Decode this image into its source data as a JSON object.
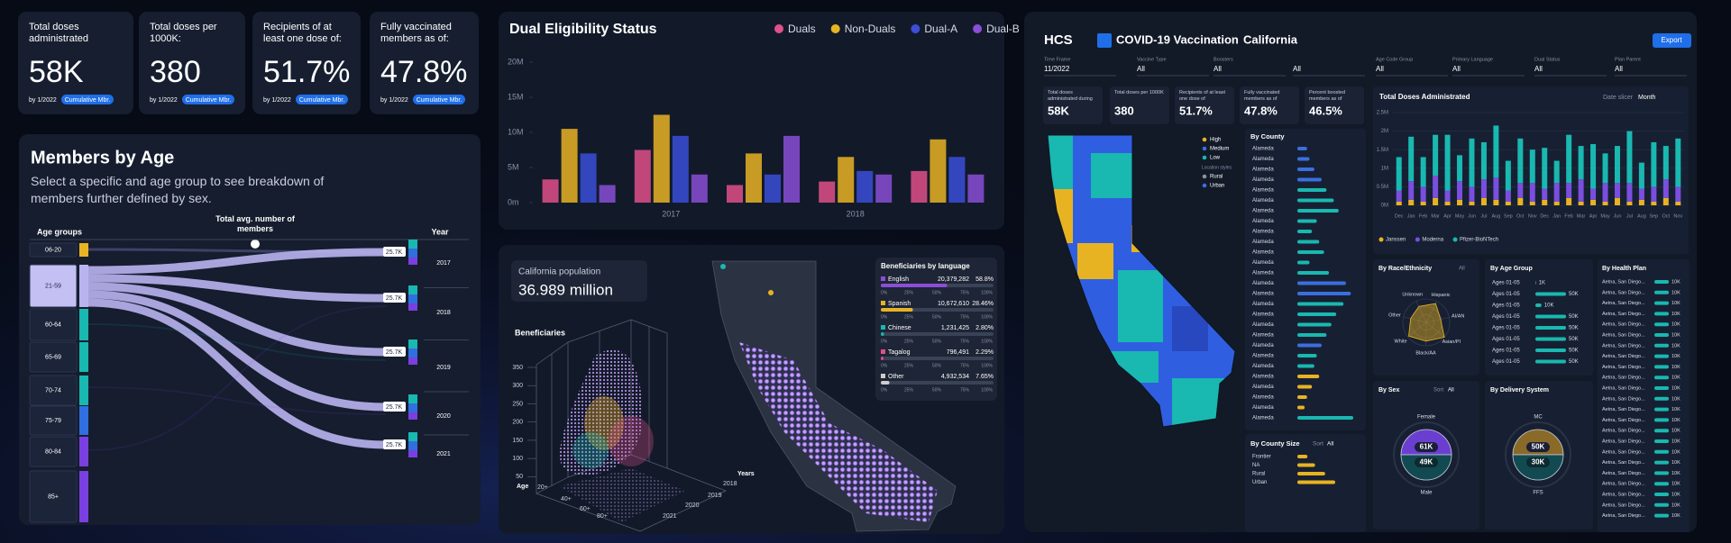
{
  "kpi_cards": [
    {
      "title": "Total doses administrated",
      "value": "58K",
      "date": "by 1/2022",
      "tag": "Cumulative Mbr."
    },
    {
      "title": "Total doses per 1000K:",
      "value": "380",
      "date": "by 1/2022",
      "tag": "Cumulative Mbr."
    },
    {
      "title": "Recipients of at least one dose of:",
      "value": "51.7%",
      "date": "by 1/2022",
      "tag": "Cumulative Mbr."
    },
    {
      "title": "Fully vaccinated members as of:",
      "value": "47.8%",
      "date": "by 1/2022",
      "tag": "Cumulative Mbr."
    }
  ],
  "members_by_age": {
    "title": "Members by Age",
    "subtitle": "Select a specific and age group to see breakdown of members further defined by sex.",
    "col_age": "Age groups",
    "col_total": "Total avg. number of members",
    "col_year": "Year",
    "age_groups": [
      "06-20",
      "21-59",
      "60-64",
      "65-69",
      "70-74",
      "75-79",
      "80-84",
      "85+"
    ],
    "age_colors": [
      "#e8b323",
      "#b9b4f0",
      "#19b8b0",
      "#19b8b0",
      "#19b8b0",
      "#2f6fe0",
      "#7a3fe0",
      "#7a3fe0"
    ],
    "years": [
      "2017",
      "2018",
      "2019",
      "2020",
      "2021"
    ],
    "flow_labels": [
      "25.7K",
      "25.7K",
      "25.7K",
      "25.7K",
      "25.7K"
    ]
  },
  "dual_eligibility": {
    "type": "bar",
    "title": "Dual Eligibility Status",
    "categories": [
      null,
      "2017",
      null,
      "2018",
      null
    ],
    "series": [
      {
        "name": "Duals",
        "color": "#e0508a",
        "values": [
          3300000,
          7500000,
          2500000,
          3000000,
          4500000
        ]
      },
      {
        "name": "Non-Duals",
        "color": "#e8b323",
        "values": [
          10500000,
          12500000,
          7000000,
          6500000,
          9000000
        ]
      },
      {
        "name": "Dual-A",
        "color": "#3b4fd8",
        "values": [
          7000000,
          9500000,
          4000000,
          4500000,
          6500000
        ]
      },
      {
        "name": "Dual-B",
        "color": "#8a4fd6",
        "values": [
          2500000,
          4000000,
          9500000,
          4000000,
          4000000
        ]
      }
    ],
    "ylim": [
      0,
      20000000
    ],
    "yticks": [
      {
        "value": 0,
        "label": "0m"
      },
      {
        "value": 5000000,
        "label": "5M"
      },
      {
        "value": 10000000,
        "label": "10M"
      },
      {
        "value": 15000000,
        "label": "15M"
      },
      {
        "value": 20000000,
        "label": "20M"
      }
    ],
    "legend": "top-right"
  },
  "population_card": {
    "title": "California population",
    "value": "36.989 million"
  },
  "beneficiaries_3d": {
    "title": "Beneficiaries",
    "ylim": [
      0,
      350
    ],
    "yticks": [
      50,
      100,
      150,
      200,
      250,
      300,
      350
    ],
    "age_label": "Age",
    "ages": [
      "20+",
      "40+",
      "60+",
      "80+"
    ],
    "years_label": "Years",
    "years": [
      "2018",
      "2019",
      "2020",
      "2021"
    ]
  },
  "language_table": {
    "title": "Beneficiaries by language",
    "scale": [
      "0%",
      "25%",
      "50%",
      "75%",
      "100%"
    ],
    "rows": [
      {
        "language": "English",
        "count": "20,379,282",
        "percent": 58.8,
        "percent_label": "58.8%",
        "color": "#8a4fd6"
      },
      {
        "language": "Spanish",
        "count": "10,672,610",
        "percent": 28.46,
        "percent_label": "28.46%",
        "color": "#e8b323"
      },
      {
        "language": "Chinese",
        "count": "1,231,425",
        "percent": 2.8,
        "percent_label": "2.80%",
        "color": "#19b8b0"
      },
      {
        "language": "Tagalog",
        "count": "796,491",
        "percent": 2.29,
        "percent_label": "2.29%",
        "color": "#e0508a"
      },
      {
        "language": "Other",
        "count": "4,932,534",
        "percent": 7.65,
        "percent_label": "7.65%",
        "color": "#cccccc"
      }
    ]
  },
  "covid_dashboard": {
    "logo": "HCS",
    "title": "COVID-19 Vaccination",
    "separator": "·",
    "region": "California",
    "export": "Export",
    "filters": [
      {
        "label": "Time Frame",
        "value": "11/2022"
      },
      {
        "label": "Vaccine Type",
        "value": "All"
      },
      {
        "label": "Boosters",
        "value": "All"
      },
      {
        "value": "All"
      },
      {
        "label": "Age Code Group",
        "value": "All"
      },
      {
        "label": "Primary Language",
        "value": "All"
      },
      {
        "label": "Dual Status",
        "value": "All"
      },
      {
        "label": "Plan Parent",
        "value": "All"
      }
    ],
    "kpis": [
      {
        "title": "Total doses administrated during",
        "value": "58K"
      },
      {
        "title": "Total doses per 1000K",
        "value": "380"
      },
      {
        "title": "Recipients of at least one dose of",
        "value": "51.7%"
      },
      {
        "title": "Fully vaccinated members as of",
        "value": "47.8%"
      },
      {
        "title": "Percent boosted members as of",
        "value": "46.5%"
      }
    ],
    "map_legend": {
      "levels": [
        {
          "name": "High",
          "color": "#e8b323"
        },
        {
          "name": "Medium",
          "color": "#3b6fe0"
        },
        {
          "name": "Low",
          "color": "#19b8b0"
        }
      ],
      "location_title": "Location styles",
      "locations": [
        {
          "name": "Rural",
          "color": "#8a8fa0"
        },
        {
          "name": "Urban",
          "color": "#3b6fe0"
        }
      ]
    },
    "by_county": {
      "title": "By County",
      "rows": [
        {
          "name": "Alameda",
          "value": 8,
          "color": "#3b6fe0"
        },
        {
          "name": "Alameda",
          "value": 10,
          "color": "#3b6fe0"
        },
        {
          "name": "Alameda",
          "value": 14,
          "color": "#3b6fe0"
        },
        {
          "name": "Alameda",
          "value": 20,
          "color": "#3b6fe0"
        },
        {
          "name": "Alameda",
          "value": 24,
          "color": "#19b8b0"
        },
        {
          "name": "Alameda",
          "value": 30,
          "color": "#19b8b0"
        },
        {
          "name": "Alameda",
          "value": 34,
          "color": "#19b8b0"
        },
        {
          "name": "Alameda",
          "value": 16,
          "color": "#19b8b0"
        },
        {
          "name": "Alameda",
          "value": 12,
          "color": "#19b8b0"
        },
        {
          "name": "Alameda",
          "value": 18,
          "color": "#19b8b0"
        },
        {
          "name": "Alameda",
          "value": 22,
          "color": "#19b8b0"
        },
        {
          "name": "Alameda",
          "value": 10,
          "color": "#19b8b0"
        },
        {
          "name": "Alameda",
          "value": 26,
          "color": "#19b8b0"
        },
        {
          "name": "Alameda",
          "value": 40,
          "color": "#3b6fe0"
        },
        {
          "name": "Alameda",
          "value": 44,
          "color": "#3b6fe0"
        },
        {
          "name": "Alameda",
          "value": 38,
          "color": "#19b8b0"
        },
        {
          "name": "Alameda",
          "value": 32,
          "color": "#19b8b0"
        },
        {
          "name": "Alameda",
          "value": 28,
          "color": "#19b8b0"
        },
        {
          "name": "Alameda",
          "value": 24,
          "color": "#19b8b0"
        },
        {
          "name": "Alameda",
          "value": 20,
          "color": "#3b6fe0"
        },
        {
          "name": "Alameda",
          "value": 16,
          "color": "#19b8b0"
        },
        {
          "name": "Alameda",
          "value": 14,
          "color": "#19b8b0"
        },
        {
          "name": "Alameda",
          "value": 18,
          "color": "#e8b323"
        },
        {
          "name": "Alameda",
          "value": 12,
          "color": "#e8b323"
        },
        {
          "name": "Alameda",
          "value": 8,
          "color": "#e8b323"
        },
        {
          "name": "Alameda",
          "value": 6,
          "color": "#e8b323"
        },
        {
          "name": "Alameda",
          "value": 46,
          "color": "#19b8b0"
        }
      ]
    },
    "by_county_size": {
      "title": "By County Size",
      "sort": "Sort",
      "sort_value": "All",
      "rows": [
        {
          "name": "Frontier",
          "value": 8,
          "color": "#e8b323"
        },
        {
          "name": "NA",
          "value": 14,
          "color": "#e8b323"
        },
        {
          "name": "Rural",
          "value": 22,
          "color": "#e8b323"
        },
        {
          "name": "Urban",
          "value": 30,
          "color": "#e8b323"
        }
      ]
    },
    "total_doses": {
      "type": "bar",
      "stacked": true,
      "title": "Total Doses Administrated",
      "slicer_label": "Date slicer",
      "slicer_value": "Month",
      "categories": [
        "Dec",
        "Jan",
        "Feb",
        "Mar",
        "Apr",
        "May",
        "Jun",
        "Jul",
        "Aug",
        "Sep",
        "Oct",
        "Nov",
        "Dec",
        "Jan",
        "Feb",
        "Mar",
        "Apr",
        "May",
        "Jun",
        "Jul",
        "Aug",
        "Sep",
        "Oct",
        "Nov"
      ],
      "series": [
        {
          "name": "Janssen",
          "color": "#e8b323",
          "values": [
            100000,
            150000,
            100000,
            200000,
            100000,
            150000,
            100000,
            200000,
            150000,
            100000,
            200000,
            100000,
            150000,
            100000,
            200000,
            100000,
            150000,
            100000,
            200000,
            100000,
            150000,
            100000,
            200000,
            100000
          ]
        },
        {
          "name": "Moderna",
          "color": "#7a4fe0",
          "values": [
            300000,
            500000,
            400000,
            600000,
            300000,
            500000,
            400000,
            500000,
            600000,
            300000,
            400000,
            500000,
            300000,
            500000,
            400000,
            600000,
            300000,
            500000,
            400000,
            500000,
            300000,
            400000,
            500000,
            400000
          ]
        },
        {
          "name": "Pfizer-BioNTech",
          "color": "#19b8b0",
          "values": [
            900000,
            1200000,
            800000,
            1100000,
            1500000,
            700000,
            1300000,
            1000000,
            1400000,
            800000,
            1200000,
            900000,
            1100000,
            600000,
            1300000,
            900000,
            1200000,
            800000,
            1000000,
            1400000,
            700000,
            1200000,
            900000,
            1300000
          ]
        }
      ],
      "ylim": [
        0,
        2500000
      ],
      "yticks": [
        {
          "value": 0,
          "label": "0M"
        },
        {
          "value": 500000,
          "label": "0.5M"
        },
        {
          "value": 1000000,
          "label": "1M"
        },
        {
          "value": 1500000,
          "label": "1.5M"
        },
        {
          "value": 2000000,
          "label": "2M"
        },
        {
          "value": 2500000,
          "label": "2.5M"
        }
      ],
      "grid": true
    },
    "race": {
      "title": "By Race/Ethnicity",
      "sort_value": "All",
      "labels": [
        "Unknown",
        "Hispanic",
        "AI/AN",
        "Asian/PI",
        "Black/AA",
        "White",
        "Other"
      ],
      "values": [
        60,
        72,
        50,
        80,
        64,
        76,
        55
      ]
    },
    "age_group": {
      "title": "By Age Group",
      "rows": [
        {
          "name": "Ages 01-05",
          "value": 1000,
          "label": "1K"
        },
        {
          "name": "Ages 01-05",
          "value": 50000,
          "label": "50K"
        },
        {
          "name": "Ages 01-05",
          "value": 10000,
          "label": "10K"
        },
        {
          "name": "Ages 01-05",
          "value": 50000,
          "label": "50K"
        },
        {
          "name": "Ages 01-05",
          "value": 50000,
          "label": "50K"
        },
        {
          "name": "Ages 01-05",
          "value": 50000,
          "label": "50K"
        },
        {
          "name": "Ages 01-05",
          "value": 50000,
          "label": "50K"
        },
        {
          "name": "Ages 01-05",
          "value": 50000,
          "label": "50K"
        }
      ]
    },
    "health_plan": {
      "title": "By Health Plan",
      "rows": [
        {
          "name": "Aetna, San Diego...",
          "value": 10000,
          "label": "10K"
        },
        {
          "name": "Aetna, San Diego...",
          "value": 10000,
          "label": "10K"
        },
        {
          "name": "Aetna, San Diego...",
          "value": 10000,
          "label": "10K"
        },
        {
          "name": "Aetna, San Diego...",
          "value": 10000,
          "label": "10K"
        },
        {
          "name": "Aetna, San Diego...",
          "value": 10000,
          "label": "10K"
        },
        {
          "name": "Aetna, San Diego...",
          "value": 10000,
          "label": "10K"
        },
        {
          "name": "Aetna, San Diego...",
          "value": 10000,
          "label": "10K"
        },
        {
          "name": "Aetna, San Diego...",
          "value": 10000,
          "label": "10K"
        },
        {
          "name": "Aetna, San Diego...",
          "value": 10000,
          "label": "10K"
        },
        {
          "name": "Aetna, San Diego...",
          "value": 10000,
          "label": "10K"
        },
        {
          "name": "Aetna, San Diego...",
          "value": 10000,
          "label": "10K"
        },
        {
          "name": "Aetna, San Diego...",
          "value": 10000,
          "label": "10K"
        },
        {
          "name": "Aetna, San Diego...",
          "value": 10000,
          "label": "10K"
        },
        {
          "name": "Aetna, San Diego...",
          "value": 10000,
          "label": "10K"
        },
        {
          "name": "Aetna, San Diego...",
          "value": 10000,
          "label": "10K"
        },
        {
          "name": "Aetna, San Diego...",
          "value": 10000,
          "label": "10K"
        },
        {
          "name": "Aetna, San Diego...",
          "value": 10000,
          "label": "10K"
        },
        {
          "name": "Aetna, San Diego...",
          "value": 10000,
          "label": "10K"
        },
        {
          "name": "Aetna, San Diego...",
          "value": 10000,
          "label": "10K"
        },
        {
          "name": "Aetna, San Diego...",
          "value": 10000,
          "label": "10K"
        },
        {
          "name": "Aetna, San Diego...",
          "value": 10000,
          "label": "10K"
        },
        {
          "name": "Aetna, San Diego...",
          "value": 10000,
          "label": "10K"
        },
        {
          "name": "Aetna, San Diego...",
          "value": 10000,
          "label": "10K"
        }
      ]
    },
    "sex": {
      "title": "By Sex",
      "sort": "Sort",
      "sort_value": "All",
      "groups": [
        {
          "name": "Female",
          "value": 61000,
          "label": "61K",
          "color": "#6a3fd0"
        },
        {
          "name": "Male",
          "value": 49000,
          "label": "49K",
          "color": "#124a52"
        }
      ]
    },
    "delivery": {
      "title": "By Delivery System",
      "groups": [
        {
          "name": "MC",
          "value": 50000,
          "label": "50K",
          "color": "#8a6a28"
        },
        {
          "name": "FFS",
          "value": 30000,
          "label": "30K",
          "color": "#124a52"
        }
      ]
    }
  }
}
